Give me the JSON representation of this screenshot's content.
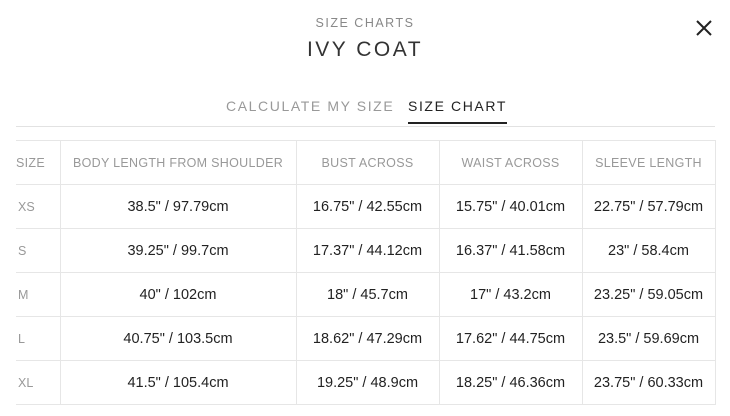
{
  "header": {
    "subtitle": "SIZE CHARTS",
    "title": "IVY COAT",
    "close_icon": "close-icon"
  },
  "tabs": [
    {
      "label": "CALCULATE MY SIZE",
      "active": false
    },
    {
      "label": "SIZE CHART",
      "active": true
    }
  ],
  "table": {
    "columns": [
      "SIZE",
      "BODY LENGTH FROM SHOULDER",
      "BUST ACROSS",
      "WAIST ACROSS",
      "SLEEVE LENGTH"
    ],
    "rows": [
      [
        "XS",
        "38.5\" / 97.79cm",
        "16.75\" / 42.55cm",
        "15.75\" / 40.01cm",
        "22.75\" / 57.79cm"
      ],
      [
        "S",
        "39.25\" / 99.7cm",
        "17.37\" / 44.12cm",
        "16.37\" / 41.58cm",
        "23\" / 58.4cm"
      ],
      [
        "M",
        "40\" / 102cm",
        "18\" / 45.7cm",
        "17\" / 43.2cm",
        "23.25\" / 59.05cm"
      ],
      [
        "L",
        "40.75\" / 103.5cm",
        "18.62\" / 47.29cm",
        "17.62\" / 44.75cm",
        "23.5\" / 59.69cm"
      ],
      [
        "XL",
        "41.5\" / 105.4cm",
        "19.25\" / 48.9cm",
        "18.25\" / 46.36cm",
        "23.75\" / 60.33cm"
      ]
    ]
  }
}
